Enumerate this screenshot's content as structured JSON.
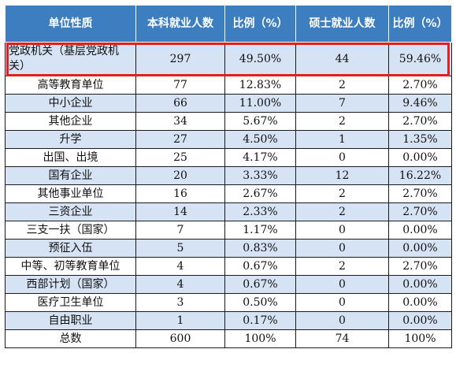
{
  "headers": [
    "单位性质",
    "本科就业人数",
    "比例（%）",
    "硕士就业人数",
    "比例（%）"
  ],
  "rows": [
    [
      "党政机关（基层党政机关）",
      "297",
      "49.50%",
      "44",
      "59.46%"
    ],
    [
      "高等教育单位",
      "77",
      "12.83%",
      "2",
      "2.70%"
    ],
    [
      "中小企业",
      "66",
      "11.00%",
      "7",
      "9.46%"
    ],
    [
      "其他企业",
      "34",
      "5.67%",
      "2",
      "2.70%"
    ],
    [
      "升学",
      "27",
      "4.50%",
      "1",
      "1.35%"
    ],
    [
      "出国、出境",
      "25",
      "4.17%",
      "0",
      "0.00%"
    ],
    [
      "国有企业",
      "20",
      "3.33%",
      "12",
      "16.22%"
    ],
    [
      "其他事业单位",
      "16",
      "2.67%",
      "2",
      "2.70%"
    ],
    [
      "三资企业",
      "14",
      "2.33%",
      "2",
      "2.70%"
    ],
    [
      "三支一扶（国家）",
      "7",
      "1.17%",
      "0",
      "0.00%"
    ],
    [
      "预征入伍",
      "5",
      "0.83%",
      "0",
      "0.00%"
    ],
    [
      "中等、初等教育单位",
      "4",
      "0.67%",
      "2",
      "2.70%"
    ],
    [
      "西部计划（国家）",
      "4",
      "0.67%",
      "0",
      "0.00%"
    ],
    [
      "医疗卫生单位",
      "3",
      "0.50%",
      "0",
      "0.00%"
    ],
    [
      "自由职业",
      "1",
      "0.17%",
      "0",
      "0.00%"
    ],
    [
      "总数",
      "600",
      "100%",
      "74",
      "100%"
    ]
  ],
  "colors": {
    "header_bg": "#3c7ebf",
    "row_alt": "#d6e3f4",
    "highlight_border": "#e02020"
  }
}
